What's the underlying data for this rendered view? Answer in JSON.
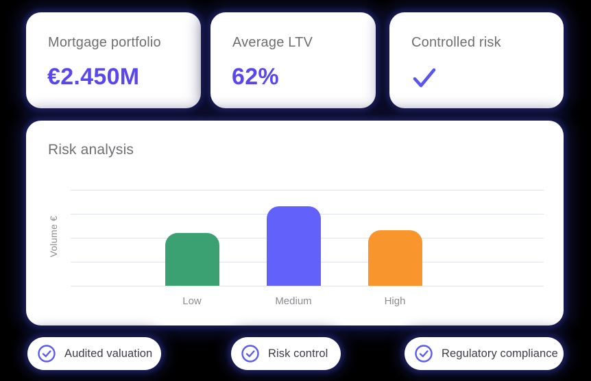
{
  "colors": {
    "background": "#000000",
    "card_glow_navy": "#181b52",
    "card_white": "#ffffff",
    "accent_purple": "#5847ed",
    "label_gray": "#6e6e73",
    "tick_gray": "#8b8b90",
    "badge_text": "#3d3d47",
    "badge_icon_purple": "#5b5bf3",
    "gridline": "#dde1f3",
    "bar_green": "#3ba173",
    "bar_purple": "#6262fa",
    "bar_orange": "#f9952d"
  },
  "stats": [
    {
      "label": "Mortgage portfolio",
      "value": "€2.450M"
    },
    {
      "label": "Average LTV",
      "value": "62%"
    },
    {
      "label": "Controlled risk",
      "value": "",
      "icon": "check-icon"
    }
  ],
  "chart": {
    "title": "Risk analysis"
  },
  "chart_data": {
    "type": "bar",
    "title": "Risk analysis",
    "categories": [
      "Low",
      "Medium",
      "High"
    ],
    "values": [
      55,
      83,
      58
    ],
    "bar_colors": [
      "#3ba173",
      "#6262fa",
      "#f9952d"
    ],
    "xlabel": "",
    "ylabel": "Volume €",
    "ylim": [
      0,
      100
    ],
    "grid": true,
    "gridline_count": 5,
    "legend_position": "none"
  },
  "badges": [
    {
      "icon": "circle-check-icon",
      "label": "Audited valuation"
    },
    {
      "icon": "circle-check-icon",
      "label": "Risk control"
    },
    {
      "icon": "circle-check-icon",
      "label": "Regulatory compliance"
    }
  ]
}
